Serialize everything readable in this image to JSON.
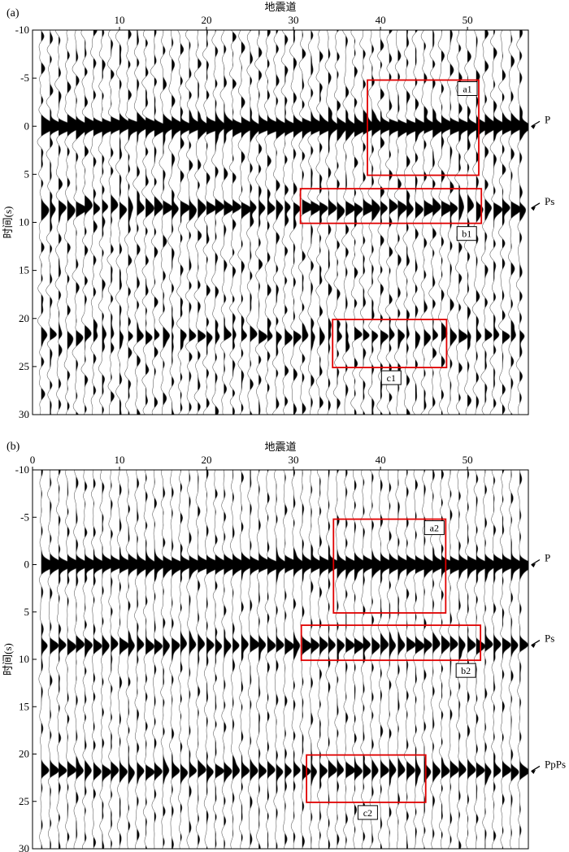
{
  "chart_data": [
    {
      "type": "seismic-wiggle",
      "panel_label": "(a)",
      "xlabel": "地震道",
      "ylabel": "时间(s)",
      "x_ticks": [
        "10",
        "20",
        "30",
        "40",
        "50"
      ],
      "x_tick_values": [
        10,
        20,
        30,
        40,
        50
      ],
      "y_ticks": [
        "-10",
        "-5",
        "0",
        "5",
        "10",
        "15",
        "20",
        "25",
        "30"
      ],
      "y_tick_values": [
        -10,
        -5,
        0,
        5,
        10,
        15,
        20,
        25,
        30
      ],
      "xlim": [
        0,
        57
      ],
      "ylim": [
        -10,
        30
      ],
      "traces": 56,
      "phases": [
        {
          "label": "P",
          "time": 0
        },
        {
          "label": "Ps",
          "time": 8.5
        }
      ],
      "boxes": [
        {
          "label": "a1",
          "trace_start": 38.5,
          "trace_end": 51.3,
          "time_start": -4.8,
          "time_end": 5.1
        },
        {
          "label": "b1",
          "trace_start": 30.8,
          "trace_end": 51.6,
          "time_start": 6.5,
          "time_end": 10.1
        },
        {
          "label": "c1",
          "trace_start": 34.5,
          "trace_end": 47.6,
          "time_start": 20.1,
          "time_end": 25.1
        }
      ]
    },
    {
      "type": "seismic-wiggle",
      "panel_label": "(b)",
      "xlabel": "地震道",
      "ylabel": "时间(s)",
      "x_ticks": [
        "0",
        "10",
        "20",
        "30",
        "40",
        "50"
      ],
      "x_tick_values": [
        0,
        10,
        20,
        30,
        40,
        50
      ],
      "y_ticks": [
        "-10",
        "-5",
        "0",
        "5",
        "10",
        "15",
        "20",
        "25",
        "30"
      ],
      "y_tick_values": [
        -10,
        -5,
        0,
        5,
        10,
        15,
        20,
        25,
        30
      ],
      "xlim": [
        0,
        57
      ],
      "ylim": [
        -10,
        30
      ],
      "traces": 56,
      "phases": [
        {
          "label": "P",
          "time": 0
        },
        {
          "label": "Ps",
          "time": 8.5
        },
        {
          "label": "PpPs",
          "time": 21.8
        }
      ],
      "boxes": [
        {
          "label": "a2",
          "trace_start": 34.6,
          "trace_end": 47.5,
          "time_start": -4.8,
          "time_end": 5.1
        },
        {
          "label": "b2",
          "trace_start": 30.9,
          "trace_end": 51.5,
          "time_start": 6.4,
          "time_end": 10.1
        },
        {
          "label": "c2",
          "trace_start": 31.5,
          "trace_end": 45.2,
          "time_start": 20.1,
          "time_end": 25.1
        }
      ]
    }
  ]
}
